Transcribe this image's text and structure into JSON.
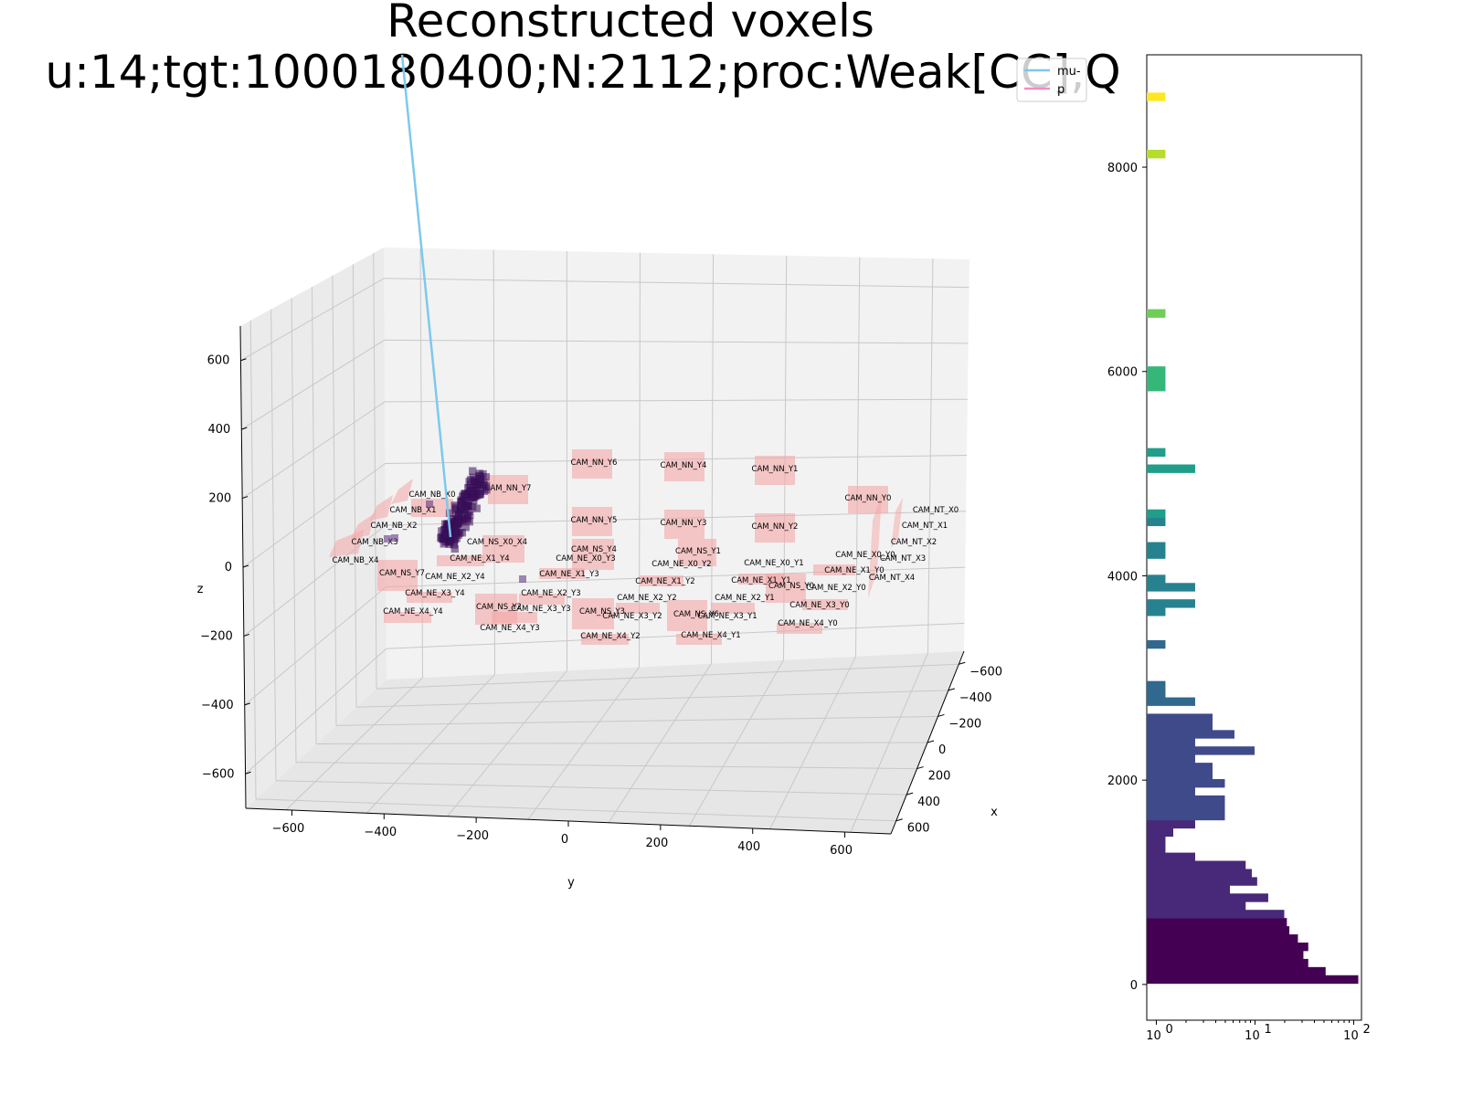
{
  "chart_data": [
    {
      "type": "scatter",
      "subtype": "3d",
      "title": "Reconstructed voxels",
      "subtitle": "u:14;tgt:1000180400;N:2112;proc:Weak[CC],Q",
      "xlabel": "x",
      "ylabel": "y",
      "zlabel": "z",
      "xlim": [
        -700,
        700
      ],
      "ylim": [
        -800,
        800
      ],
      "zlim": [
        -700,
        700
      ],
      "x_ticks": [
        -600,
        -400,
        -200,
        0,
        200,
        400,
        600
      ],
      "y_ticks": [
        -600,
        -400,
        -200,
        0,
        200,
        400,
        600
      ],
      "z_ticks": [
        -600,
        -400,
        -200,
        0,
        200,
        400,
        600
      ],
      "grid": true,
      "legend": {
        "position": "top-right",
        "entries": [
          {
            "name": "mu-",
            "color": "#7ec8ee"
          },
          {
            "name": "p",
            "color": "#f48cc2"
          }
        ]
      },
      "detector_color": "#f4a6a6",
      "voxel_color": "#3b0f5c",
      "camera_labels": [
        "CAM_NN_Y6",
        "CAM_NN_Y4",
        "CAM_NN_Y1",
        "CAM_NN_Y7",
        "CAM_NN_Y0",
        "CAM_NN_Y5",
        "CAM_NN_Y3",
        "CAM_NN_Y2",
        "CAM_NB_X0",
        "CAM_NB_X1",
        "CAM_NB_X2",
        "CAM_NB_X3",
        "CAM_NB_X4",
        "CAM_NT_X0",
        "CAM_NT_X1",
        "CAM_NT_X2",
        "CAM_NT_X3",
        "CAM_NT_X4",
        "CAM_NS_X0_X4",
        "CAM_NS_Y4",
        "CAM_NS_Y1",
        "CAM_NS_Y7",
        "CAM_NS_Y3",
        "CAM_NS_Y0",
        "CAM_NS_Y6",
        "CAM_NS_Y2",
        "CAM_NE_X1_Y4",
        "CAM_NE_X0_Y3",
        "CAM_NE_X0_Y2",
        "CAM_NE_X0_Y1",
        "CAM_NE_X0_Y0",
        "CAM_NE_X2_Y4",
        "CAM_NE_X1_Y3",
        "CAM_NE_X1_Y2",
        "CAM_NE_X1_Y1",
        "CAM_NE_X1_Y0",
        "CAM_NE_X3_Y4",
        "CAM_NE_X2_Y3",
        "CAM_NE_X2_Y2",
        "CAM_NE_X2_Y1",
        "CAM_NE_X2_Y0",
        "CAM_NE_X4_Y4",
        "CAM_NE_X3_Y3",
        "CAM_NE_X3_Y2",
        "CAM_NE_X3_Y1",
        "CAM_NE_X3_Y0",
        "CAM_NE_X4_Y3",
        "CAM_NE_X4_Y2",
        "CAM_NE_X4_Y1",
        "CAM_NE_X4_Y0"
      ]
    },
    {
      "type": "bar",
      "orientation": "horizontal",
      "x_scale": "log",
      "xlim": [
        0.8,
        120
      ],
      "x_tick_labels": [
        "10",
        "10",
        "10"
      ],
      "x_tick_exponents": [
        "0",
        "1",
        "2"
      ],
      "ylim": [
        -350,
        9100
      ],
      "y_ticks": [
        0,
        2000,
        4000,
        6000,
        8000
      ],
      "colormap": "viridis",
      "bins": [
        {
          "y": 50,
          "count": 90
        },
        {
          "y": 130,
          "count": 42
        },
        {
          "y": 210,
          "count": 28
        },
        {
          "y": 290,
          "count": 25
        },
        {
          "y": 370,
          "count": 28
        },
        {
          "y": 450,
          "count": 22
        },
        {
          "y": 530,
          "count": 18
        },
        {
          "y": 610,
          "count": 17
        },
        {
          "y": 690,
          "count": 16
        },
        {
          "y": 770,
          "count": 6.5
        },
        {
          "y": 850,
          "count": 11
        },
        {
          "y": 930,
          "count": 4.5
        },
        {
          "y": 1010,
          "count": 8.5
        },
        {
          "y": 1090,
          "count": 7.5
        },
        {
          "y": 1170,
          "count": 6.5
        },
        {
          "y": 1250,
          "count": 2
        },
        {
          "y": 1330,
          "count": 1
        },
        {
          "y": 1410,
          "count": 1
        },
        {
          "y": 1490,
          "count": 1.2
        },
        {
          "y": 1570,
          "count": 2
        },
        {
          "y": 1650,
          "count": 4
        },
        {
          "y": 1730,
          "count": 4
        },
        {
          "y": 1810,
          "count": 4
        },
        {
          "y": 1890,
          "count": 2
        },
        {
          "y": 1970,
          "count": 4
        },
        {
          "y": 2050,
          "count": 3
        },
        {
          "y": 2130,
          "count": 3
        },
        {
          "y": 2210,
          "count": 2
        },
        {
          "y": 2290,
          "count": 8
        },
        {
          "y": 2370,
          "count": 2
        },
        {
          "y": 2450,
          "count": 5
        },
        {
          "y": 2530,
          "count": 3
        },
        {
          "y": 2610,
          "count": 3
        },
        {
          "y": 2770,
          "count": 2
        },
        {
          "y": 2850,
          "count": 1
        },
        {
          "y": 2930,
          "count": 1
        },
        {
          "y": 3330,
          "count": 1
        },
        {
          "y": 3650,
          "count": 1
        },
        {
          "y": 3730,
          "count": 2
        },
        {
          "y": 3890,
          "count": 2
        },
        {
          "y": 3970,
          "count": 1
        },
        {
          "y": 4210,
          "count": 1
        },
        {
          "y": 4290,
          "count": 1
        },
        {
          "y": 4530,
          "count": 1
        },
        {
          "y": 4610,
          "count": 1
        },
        {
          "y": 5050,
          "count": 2
        },
        {
          "y": 5210,
          "count": 1
        },
        {
          "y": 5850,
          "count": 1
        },
        {
          "y": 5930,
          "count": 1
        },
        {
          "y": 6010,
          "count": 1
        },
        {
          "y": 6570,
          "count": 1
        },
        {
          "y": 8130,
          "count": 1
        },
        {
          "y": 8690,
          "count": 1
        }
      ]
    }
  ]
}
